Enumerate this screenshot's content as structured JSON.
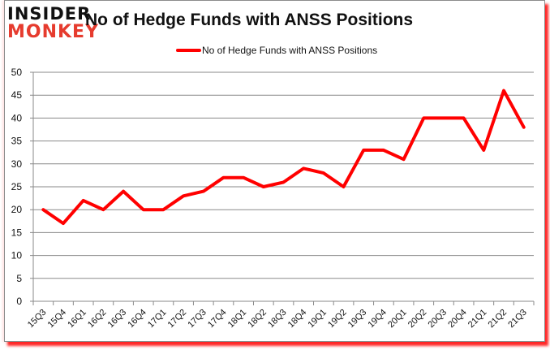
{
  "brand": {
    "logo_top": "INSIDER",
    "logo_bottom": "MONKEY",
    "logo_top_color": "#111111",
    "logo_bottom_color": "#e63b2e"
  },
  "chart_data": {
    "type": "line",
    "title": "No of Hedge Funds with ANSS Positions",
    "xlabel": "",
    "ylabel": "",
    "ylim": [
      0,
      50
    ],
    "yticks": [
      0,
      5,
      10,
      15,
      20,
      25,
      30,
      35,
      40,
      45,
      50
    ],
    "grid": true,
    "legend_position": "top",
    "categories": [
      "15Q3",
      "15Q4",
      "16Q1",
      "16Q2",
      "16Q3",
      "16Q4",
      "17Q1",
      "17Q2",
      "17Q3",
      "17Q4",
      "18Q1",
      "18Q2",
      "18Q3",
      "18Q4",
      "19Q1",
      "19Q2",
      "19Q3",
      "19Q4",
      "20Q1",
      "20Q2",
      "20Q3",
      "20Q4",
      "21Q1",
      "21Q2",
      "21Q3"
    ],
    "series": [
      {
        "name": "No of Hedge Funds with ANSS Positions",
        "color": "#ff0000",
        "values": [
          20,
          17,
          22,
          20,
          24,
          20,
          20,
          23,
          24,
          27,
          27,
          25,
          26,
          29,
          28,
          25,
          33,
          33,
          31,
          40,
          40,
          40,
          33,
          46,
          38
        ]
      }
    ]
  },
  "legend": {
    "label": "No of Hedge Funds with ANSS Positions",
    "color": "#ff0000"
  }
}
